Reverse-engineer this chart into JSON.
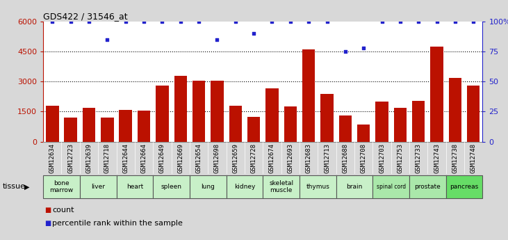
{
  "title": "GDS422 / 31546_at",
  "samples": [
    "GSM12634",
    "GSM12723",
    "GSM12639",
    "GSM12718",
    "GSM12644",
    "GSM12664",
    "GSM12649",
    "GSM12669",
    "GSM12654",
    "GSM12698",
    "GSM12659",
    "GSM12728",
    "GSM12674",
    "GSM12693",
    "GSM12683",
    "GSM12713",
    "GSM12688",
    "GSM12708",
    "GSM12703",
    "GSM12753",
    "GSM12733",
    "GSM12743",
    "GSM12738",
    "GSM12748"
  ],
  "counts": [
    1800,
    1200,
    1700,
    1200,
    1600,
    1550,
    2800,
    3300,
    3050,
    3050,
    1800,
    1250,
    2650,
    1750,
    4600,
    2400,
    1300,
    850,
    2000,
    1700,
    2050,
    4750,
    3200,
    2800
  ],
  "percentile": [
    100,
    100,
    100,
    85,
    100,
    100,
    100,
    100,
    100,
    85,
    100,
    90,
    100,
    100,
    100,
    100,
    75,
    78,
    100,
    100,
    100,
    100,
    100,
    100
  ],
  "tissues": [
    {
      "name": "bone\nmarrow",
      "start": 0,
      "end": 2,
      "color": "#c8f0c8"
    },
    {
      "name": "liver",
      "start": 2,
      "end": 4,
      "color": "#c8f0c8"
    },
    {
      "name": "heart",
      "start": 4,
      "end": 6,
      "color": "#c8f0c8"
    },
    {
      "name": "spleen",
      "start": 6,
      "end": 8,
      "color": "#c8f0c8"
    },
    {
      "name": "lung",
      "start": 8,
      "end": 10,
      "color": "#c8f0c8"
    },
    {
      "name": "kidney",
      "start": 10,
      "end": 12,
      "color": "#c8f0c8"
    },
    {
      "name": "skeletal\nmuscle",
      "start": 12,
      "end": 14,
      "color": "#c8f0c8"
    },
    {
      "name": "thymus",
      "start": 14,
      "end": 16,
      "color": "#c8f0c8"
    },
    {
      "name": "brain",
      "start": 16,
      "end": 18,
      "color": "#c8f0c8"
    },
    {
      "name": "spinal cord",
      "start": 18,
      "end": 20,
      "color": "#aae8aa"
    },
    {
      "name": "prostate",
      "start": 20,
      "end": 22,
      "color": "#aae8aa"
    },
    {
      "name": "pancreas",
      "start": 22,
      "end": 24,
      "color": "#66dd66"
    }
  ],
  "bar_color": "#bb1100",
  "dot_color": "#2222cc",
  "ylim_left": [
    0,
    6000
  ],
  "ylim_right": [
    0,
    100
  ],
  "yticks_left": [
    0,
    1500,
    3000,
    4500,
    6000
  ],
  "yticks_right": [
    0,
    25,
    50,
    75,
    100
  ],
  "grid_lines": [
    1500,
    3000,
    4500
  ],
  "background_color": "#d8d8d8",
  "plot_bg_color": "#ffffff",
  "xtick_bg_color": "#d0d0d0"
}
